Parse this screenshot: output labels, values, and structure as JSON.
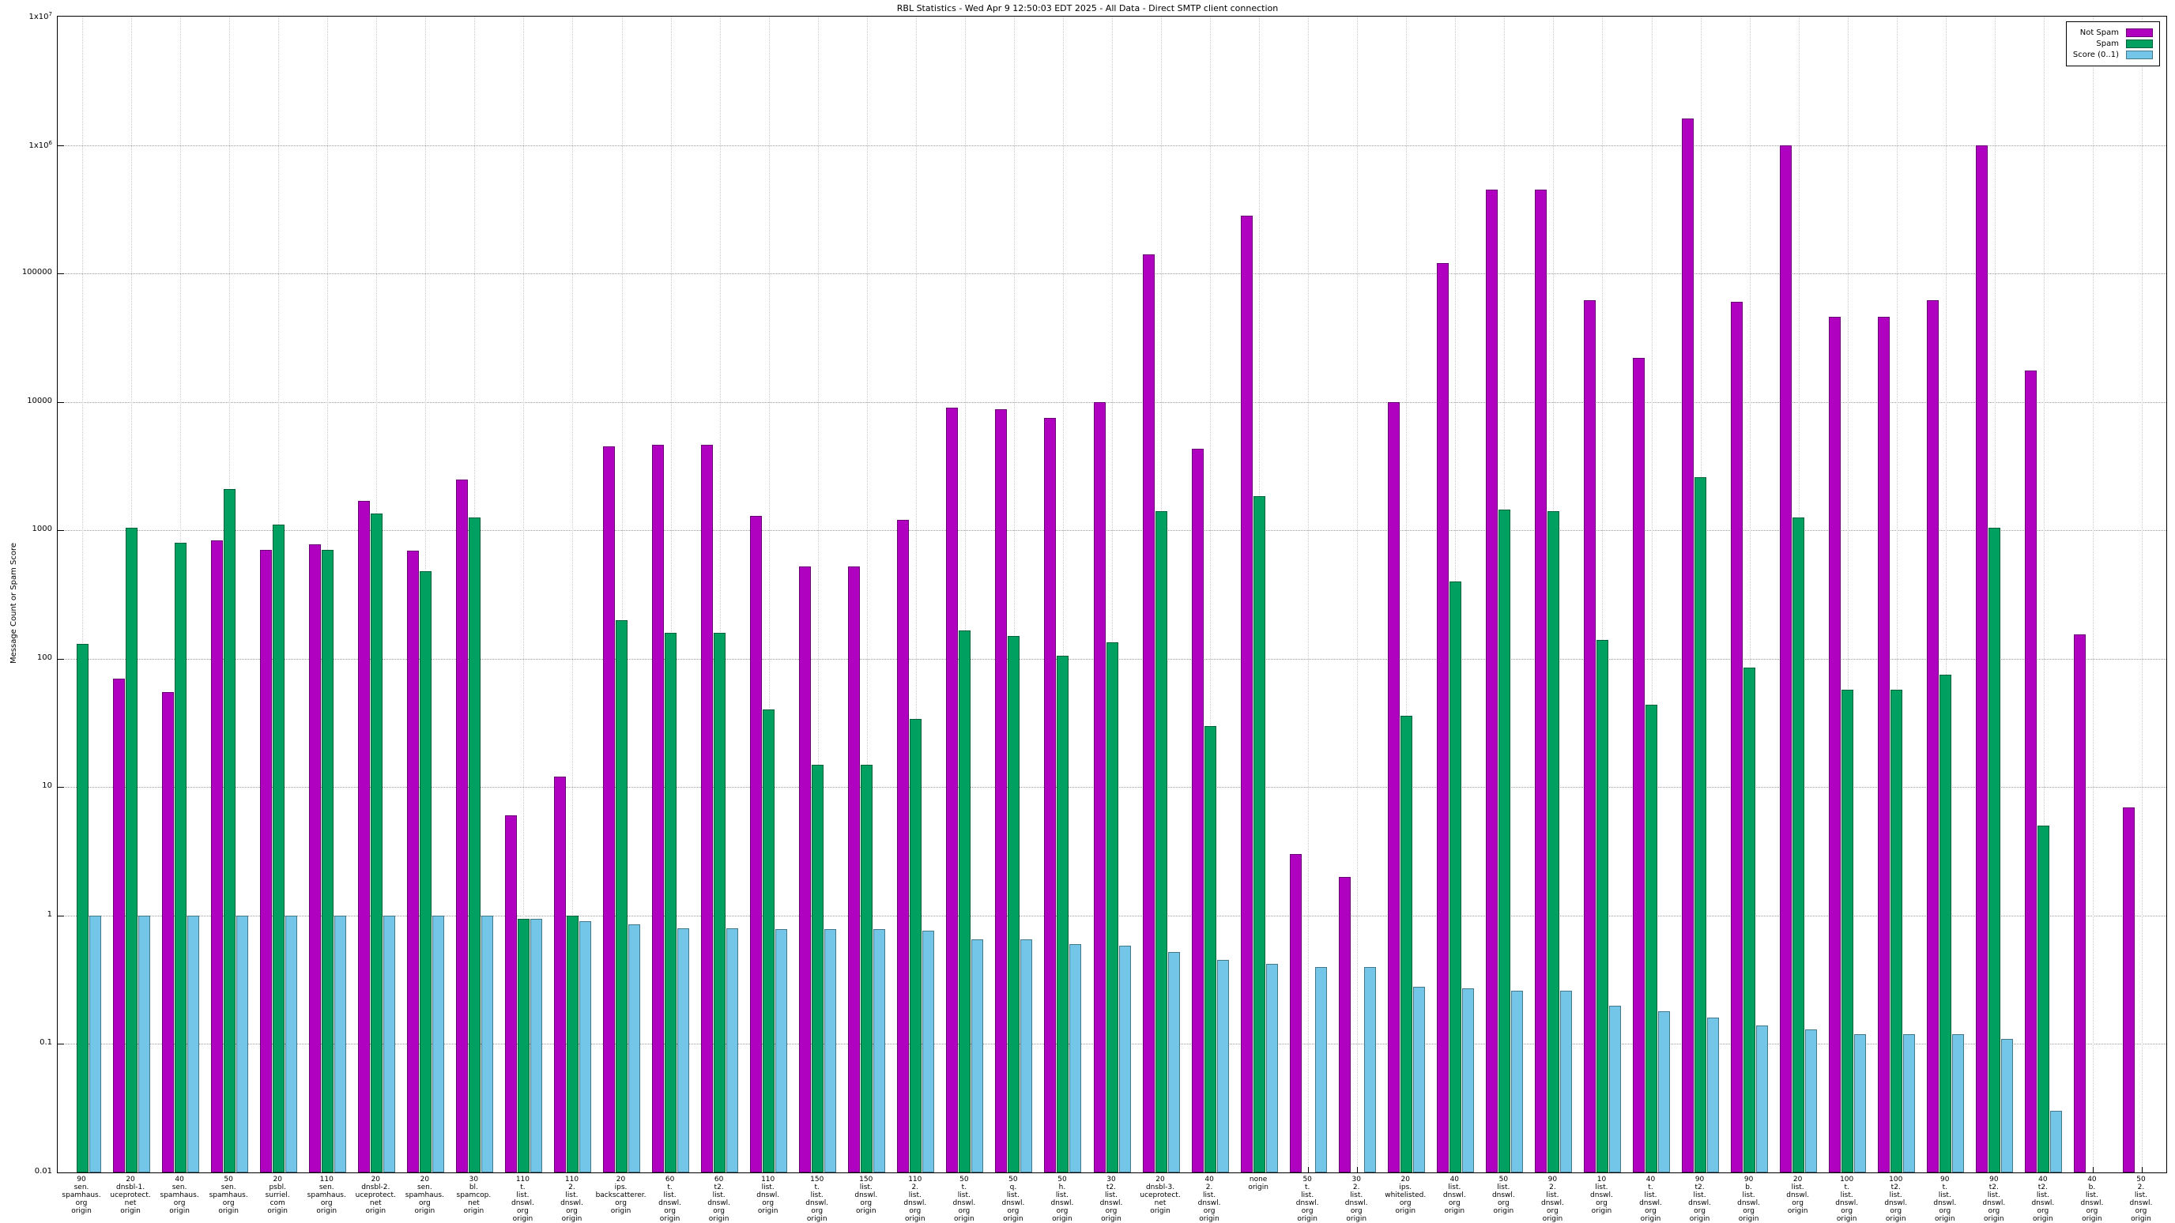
{
  "chart_data": {
    "type": "bar",
    "title": "RBL Statistics - Wed Apr  9 12:50:03 EDT 2025 - All Data - Direct SMTP client connection",
    "ylabel": "Message Count or Spam Score",
    "ylim": [
      0.01,
      10000000
    ],
    "log_scale": true,
    "grid": true,
    "legend_position": "top-right",
    "y_ticks": [
      "1x10^7",
      "1x10^6",
      "100000",
      "10000",
      "1000",
      "100",
      "10",
      "1",
      "0.1",
      "0.01"
    ],
    "categories": [
      [
        "90",
        "sen.",
        "spamhaus.",
        "org",
        "origin"
      ],
      [
        "20",
        "dnsbl-1.",
        "uceprotect.",
        "net",
        "origin"
      ],
      [
        "40",
        "sen.",
        "spamhaus.",
        "org",
        "origin"
      ],
      [
        "50",
        "sen.",
        "spamhaus.",
        "org",
        "origin"
      ],
      [
        "20",
        "psbl.",
        "surriel.",
        "com",
        "origin"
      ],
      [
        "110",
        "sen.",
        "spamhaus.",
        "org",
        "origin"
      ],
      [
        "20",
        "dnsbl-2.",
        "uceprotect.",
        "net",
        "origin"
      ],
      [
        "20",
        "sen.",
        "spamhaus.",
        "org",
        "origin"
      ],
      [
        "30",
        "bl.",
        "spamcop.",
        "net",
        "origin"
      ],
      [
        "110",
        "t.",
        "list.",
        "dnswl.",
        "org",
        "origin"
      ],
      [
        "110",
        "2.",
        "list.",
        "dnswl.",
        "org",
        "origin"
      ],
      [
        "20",
        "ips.",
        "backscatterer.",
        "org",
        "origin"
      ],
      [
        "60",
        "t.",
        "list.",
        "dnswl.",
        "org",
        "origin"
      ],
      [
        "60",
        "t2.",
        "list.",
        "dnswl.",
        "org",
        "origin"
      ],
      [
        "110",
        "list.",
        "dnswl.",
        "org",
        "origin"
      ],
      [
        "150",
        "t.",
        "list.",
        "dnswl.",
        "org",
        "origin"
      ],
      [
        "150",
        "list.",
        "dnswl.",
        "org",
        "origin"
      ],
      [
        "110",
        "2.",
        "list.",
        "dnswl.",
        "org",
        "origin"
      ],
      [
        "50",
        "t.",
        "list.",
        "dnswl.",
        "org",
        "origin"
      ],
      [
        "50",
        "q.",
        "list.",
        "dnswl.",
        "org",
        "origin"
      ],
      [
        "50",
        "h.",
        "list.",
        "dnswl.",
        "org",
        "origin"
      ],
      [
        "30",
        "t2.",
        "list.",
        "dnswl.",
        "org",
        "origin"
      ],
      [
        "20",
        "dnsbl-3.",
        "uceprotect.",
        "net",
        "origin"
      ],
      [
        "40",
        "2.",
        "list.",
        "dnswl.",
        "org",
        "origin"
      ],
      [
        "none",
        "origin"
      ],
      [
        "50",
        "t.",
        "list.",
        "dnswl.",
        "org",
        "origin"
      ],
      [
        "30",
        "2.",
        "list.",
        "dnswl.",
        "org",
        "origin"
      ],
      [
        "20",
        "ips.",
        "whitelisted.",
        "org",
        "origin"
      ],
      [
        "40",
        "list.",
        "dnswl.",
        "org",
        "origin"
      ],
      [
        "50",
        "list.",
        "dnswl.",
        "org",
        "origin"
      ],
      [
        "90",
        "2.",
        "list.",
        "dnswl.",
        "org",
        "origin"
      ],
      [
        "10",
        "list.",
        "dnswl.",
        "org",
        "origin"
      ],
      [
        "40",
        "t.",
        "list.",
        "dnswl.",
        "org",
        "origin"
      ],
      [
        "90",
        "t2.",
        "list.",
        "dnswl.",
        "org",
        "origin"
      ],
      [
        "90",
        "b.",
        "list.",
        "dnswl.",
        "org",
        "origin"
      ],
      [
        "20",
        "list.",
        "dnswl.",
        "org",
        "origin"
      ],
      [
        "100",
        "t.",
        "list.",
        "dnswl.",
        "org",
        "origin"
      ],
      [
        "100",
        "t2.",
        "list.",
        "dnswl.",
        "org",
        "origin"
      ],
      [
        "90",
        "t.",
        "list.",
        "dnswl.",
        "org",
        "origin"
      ],
      [
        "90",
        "t2.",
        "list.",
        "dnswl.",
        "org",
        "origin"
      ],
      [
        "40",
        "t2.",
        "list.",
        "dnswl.",
        "org",
        "origin"
      ],
      [
        "40",
        "b.",
        "list.",
        "dnswl.",
        "org",
        "origin"
      ],
      [
        "50",
        "2.",
        "list.",
        "dnswl.",
        "org",
        "origin"
      ]
    ],
    "series": [
      {
        "name": "Not Spam",
        "color": "#b000c0",
        "values": [
          null,
          70,
          55,
          830,
          700,
          780,
          1700,
          690,
          2500,
          6,
          12,
          4500,
          4600,
          4600,
          1300,
          520,
          520,
          1200,
          9000,
          8700,
          7500,
          10000,
          140000,
          4300,
          280000,
          3,
          2,
          10000,
          120000,
          450000,
          450000,
          62000,
          22000,
          1600000,
          60000,
          1000000,
          46000,
          46000,
          62000,
          1000000,
          17500,
          155,
          7
        ]
      },
      {
        "name": "Spam",
        "color": "#00a060",
        "values": [
          130,
          1050,
          800,
          2100,
          1100,
          700,
          1350,
          480,
          1250,
          0.95,
          1.0,
          200,
          160,
          160,
          40,
          15,
          15,
          34,
          165,
          150,
          105,
          135,
          1400,
          30,
          1850,
          null,
          null,
          36,
          400,
          1450,
          1400,
          140,
          44,
          2600,
          85,
          1250,
          57,
          57,
          75,
          1050,
          5,
          null,
          null
        ]
      },
      {
        "name": "Score (0..1)",
        "color": "#73c6e8",
        "values": [
          1.0,
          1.0,
          1.0,
          1.0,
          1.0,
          1.0,
          1.0,
          1.0,
          1.0,
          0.95,
          0.9,
          0.85,
          0.8,
          0.8,
          0.78,
          0.78,
          0.78,
          0.76,
          0.65,
          0.65,
          0.6,
          0.58,
          0.52,
          0.45,
          0.42,
          0.4,
          0.4,
          0.28,
          0.27,
          0.26,
          0.26,
          0.2,
          0.18,
          0.16,
          0.14,
          0.13,
          0.12,
          0.12,
          0.12,
          0.11,
          0.03,
          null,
          null
        ]
      }
    ]
  }
}
